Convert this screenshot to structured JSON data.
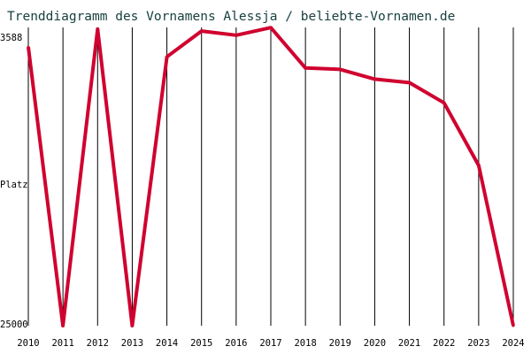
{
  "chart_data": {
    "type": "line",
    "title": "Trenddiagramm des Vornamens Alessja / beliebte-Vornamen.de",
    "ylabel": "Platz",
    "y_tick_top": "3588",
    "y_tick_bottom": "25000",
    "ylim": [
      25000,
      3588
    ],
    "y_inverted": true,
    "grid": "vertical",
    "x": [
      "2010",
      "2011",
      "2012",
      "2013",
      "2014",
      "2015",
      "2016",
      "2017",
      "2018",
      "2019",
      "2020",
      "2021",
      "2022",
      "2023",
      "2024"
    ],
    "series": [
      {
        "values": [
          5000,
          25000,
          3700,
          25000,
          5700,
          3850,
          4150,
          3600,
          6500,
          6600,
          7300,
          7550,
          9000,
          13500,
          25000
        ]
      }
    ],
    "colors": {
      "line": "#d0022f",
      "grid": "#000000",
      "text": "#1a4040"
    }
  }
}
